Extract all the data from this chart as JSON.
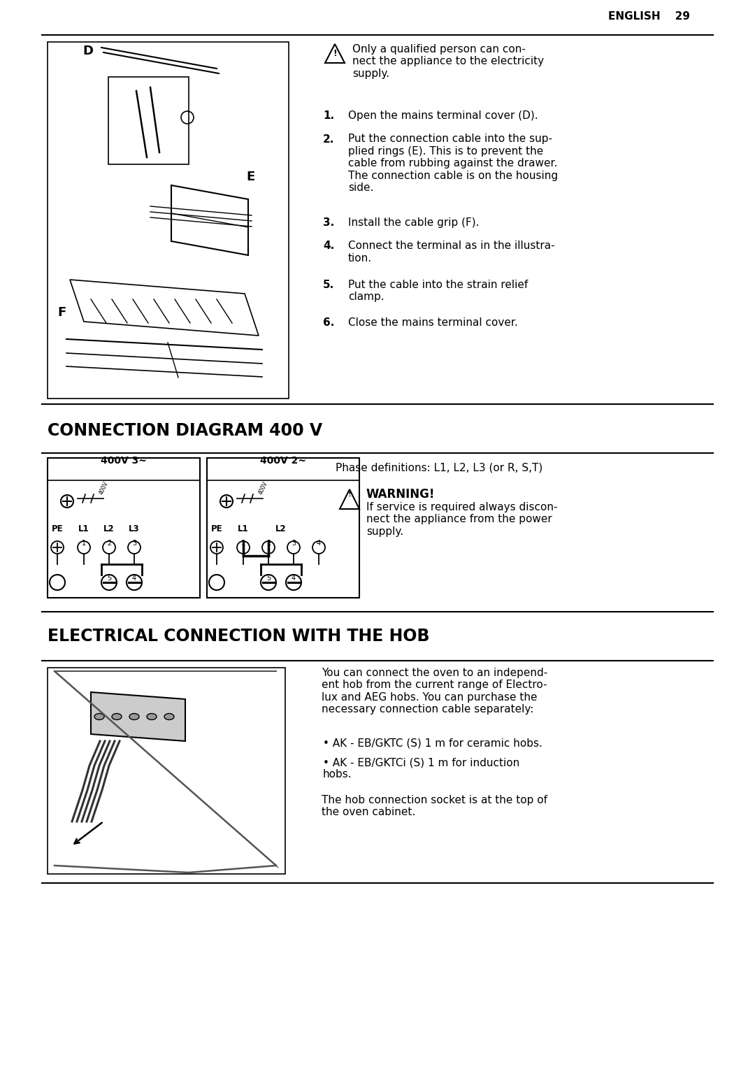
{
  "page_header": "ENGLISH    29",
  "bg_color": "#ffffff",
  "line_color": "#000000",
  "section1": {
    "warning_text": "Only a qualified person can con-\nnect the appliance to the electricity\nsupply.",
    "steps": [
      {
        "num": "1.",
        "text": "Open the mains terminal cover (D)."
      },
      {
        "num": "2.",
        "text": "Put the connection cable into the sup-\nplied rings (E). This is to prevent the\ncable from rubbing against the drawer.\nThe connection cable is on the housing\nside."
      },
      {
        "num": "3.",
        "text": "Install the cable grip (F)."
      },
      {
        "num": "4.",
        "text": "Connect the terminal as in the illustra-\ntion."
      },
      {
        "num": "5.",
        "text": "Put the cable into the strain relief\nclamp."
      },
      {
        "num": "6.",
        "text": "Close the mains terminal cover."
      }
    ]
  },
  "section2": {
    "title": "CONNECTION DIAGRAM 400 V",
    "left_label": "400V 3~",
    "right_label": "400V 2~",
    "left_terminals": "PE L1 L2 L3",
    "right_terminals": "PE L1    L2",
    "phase_text": "Phase definitions: L1, L2, L3 (or R, S,T)",
    "warning_title": "WARNING!",
    "warning_text": "If service is required always discon-\nnect the appliance from the power\nsupply."
  },
  "section3": {
    "title": "ELECTRICAL CONNECTION WITH THE HOB",
    "body_text": "You can connect the oven to an independ-\nent hob from the current range of Electro-\nlux and AEG hobs. You can purchase the\nnecessary connection cable separately:",
    "bullets": [
      "AK - EB/GKTC (S) 1 m for ceramic hobs.",
      "AK - EB/GKTCi (S) 1 m for induction\nhobs."
    ],
    "footer_text": "The hob connection socket is at the top of\nthe oven cabinet."
  }
}
